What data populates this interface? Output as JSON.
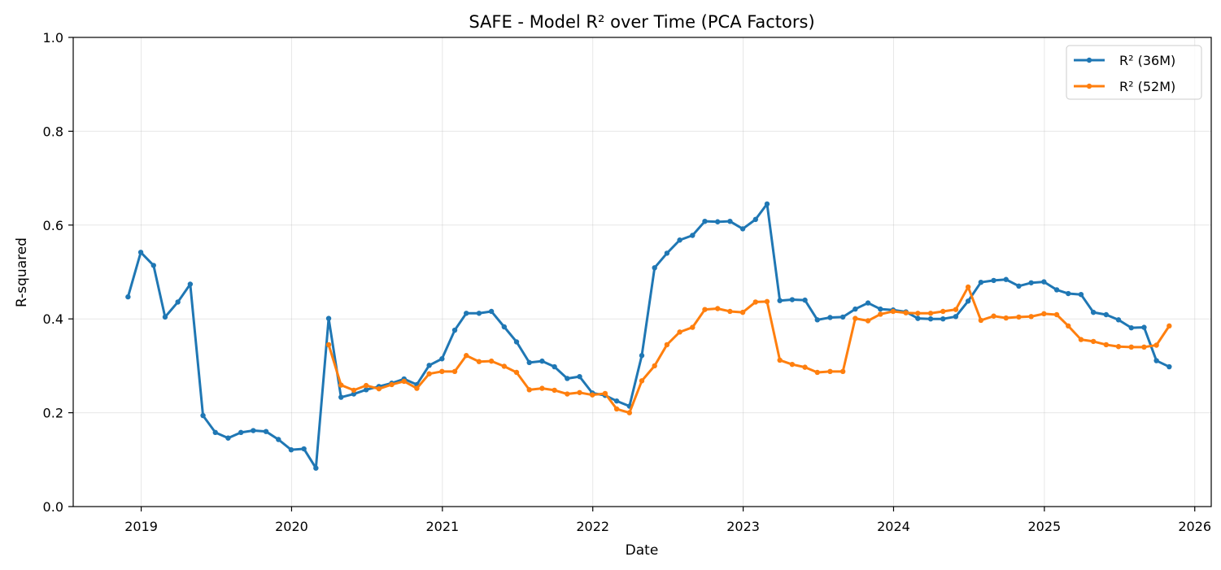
{
  "chart_data": {
    "type": "line",
    "title": "SAFE - Model R² over Time (PCA Factors)",
    "xlabel": "Date",
    "ylabel": "R-squared",
    "xlim": [
      "2018-07-20",
      "2026-02-10"
    ],
    "ylim": [
      0,
      1.0
    ],
    "x_ticks": [
      "2019",
      "2020",
      "2021",
      "2022",
      "2023",
      "2024",
      "2025",
      "2026"
    ],
    "y_ticks": [
      "0.0",
      "0.2",
      "0.4",
      "0.6",
      "0.8",
      "1.0"
    ],
    "grid": true,
    "legend_position": "top-right",
    "series": [
      {
        "name": "R² (36M)",
        "color": "#1f77b4",
        "points": [
          [
            "2018-11-30",
            0.447
          ],
          [
            "2018-12-31",
            0.542
          ],
          [
            "2019-01-31",
            0.514
          ],
          [
            "2019-02-28",
            0.404
          ],
          [
            "2019-03-31",
            0.436
          ],
          [
            "2019-04-30",
            0.474
          ],
          [
            "2019-05-31",
            0.194
          ],
          [
            "2019-06-30",
            0.158
          ],
          [
            "2019-07-31",
            0.146
          ],
          [
            "2019-08-31",
            0.158
          ],
          [
            "2019-09-30",
            0.162
          ],
          [
            "2019-10-31",
            0.16
          ],
          [
            "2019-11-30",
            0.143
          ],
          [
            "2019-12-31",
            0.121
          ],
          [
            "2020-01-31",
            0.123
          ],
          [
            "2020-02-29",
            0.082
          ],
          [
            "2020-03-31",
            0.401
          ],
          [
            "2020-04-30",
            0.233
          ],
          [
            "2020-05-31",
            0.24
          ],
          [
            "2020-06-30",
            0.249
          ],
          [
            "2020-07-31",
            0.256
          ],
          [
            "2020-08-31",
            0.263
          ],
          [
            "2020-09-30",
            0.272
          ],
          [
            "2020-10-31",
            0.26
          ],
          [
            "2020-11-30",
            0.301
          ],
          [
            "2020-12-31",
            0.315
          ],
          [
            "2021-01-31",
            0.376
          ],
          [
            "2021-02-28",
            0.412
          ],
          [
            "2021-03-31",
            0.412
          ],
          [
            "2021-04-30",
            0.416
          ],
          [
            "2021-05-31",
            0.383
          ],
          [
            "2021-06-30",
            0.351
          ],
          [
            "2021-07-31",
            0.307
          ],
          [
            "2021-08-31",
            0.31
          ],
          [
            "2021-09-30",
            0.298
          ],
          [
            "2021-10-31",
            0.273
          ],
          [
            "2021-11-30",
            0.277
          ],
          [
            "2021-12-31",
            0.242
          ],
          [
            "2022-01-31",
            0.237
          ],
          [
            "2022-02-28",
            0.225
          ],
          [
            "2022-03-31",
            0.214
          ],
          [
            "2022-04-30",
            0.322
          ],
          [
            "2022-05-31",
            0.509
          ],
          [
            "2022-06-30",
            0.54
          ],
          [
            "2022-07-31",
            0.568
          ],
          [
            "2022-08-31",
            0.578
          ],
          [
            "2022-09-30",
            0.608
          ],
          [
            "2022-10-31",
            0.607
          ],
          [
            "2022-11-30",
            0.608
          ],
          [
            "2022-12-31",
            0.592
          ],
          [
            "2023-01-31",
            0.612
          ],
          [
            "2023-02-28",
            0.645
          ],
          [
            "2023-03-31",
            0.439
          ],
          [
            "2023-04-30",
            0.441
          ],
          [
            "2023-05-31",
            0.44
          ],
          [
            "2023-06-30",
            0.398
          ],
          [
            "2023-07-31",
            0.403
          ],
          [
            "2023-08-31",
            0.404
          ],
          [
            "2023-09-30",
            0.421
          ],
          [
            "2023-10-31",
            0.434
          ],
          [
            "2023-11-30",
            0.421
          ],
          [
            "2023-12-31",
            0.419
          ],
          [
            "2024-01-31",
            0.415
          ],
          [
            "2024-02-29",
            0.401
          ],
          [
            "2024-03-31",
            0.4
          ],
          [
            "2024-04-30",
            0.4
          ],
          [
            "2024-05-31",
            0.405
          ],
          [
            "2024-06-30",
            0.438
          ],
          [
            "2024-07-31",
            0.478
          ],
          [
            "2024-08-31",
            0.482
          ],
          [
            "2024-09-30",
            0.484
          ],
          [
            "2024-10-31",
            0.47
          ],
          [
            "2024-11-30",
            0.477
          ],
          [
            "2024-12-31",
            0.479
          ],
          [
            "2025-01-31",
            0.462
          ],
          [
            "2025-02-28",
            0.454
          ],
          [
            "2025-03-31",
            0.452
          ],
          [
            "2025-04-30",
            0.414
          ],
          [
            "2025-05-31",
            0.409
          ],
          [
            "2025-06-30",
            0.398
          ],
          [
            "2025-07-31",
            0.381
          ],
          [
            "2025-08-31",
            0.382
          ],
          [
            "2025-09-30",
            0.311
          ],
          [
            "2025-10-31",
            0.298
          ]
        ]
      },
      {
        "name": "R² (52M)",
        "color": "#ff7f0e",
        "points": [
          [
            "2020-03-31",
            0.345
          ],
          [
            "2020-04-30",
            0.259
          ],
          [
            "2020-05-31",
            0.248
          ],
          [
            "2020-06-30",
            0.258
          ],
          [
            "2020-07-31",
            0.251
          ],
          [
            "2020-08-31",
            0.26
          ],
          [
            "2020-09-30",
            0.267
          ],
          [
            "2020-10-31",
            0.252
          ],
          [
            "2020-11-30",
            0.283
          ],
          [
            "2020-12-31",
            0.288
          ],
          [
            "2021-01-31",
            0.288
          ],
          [
            "2021-02-28",
            0.322
          ],
          [
            "2021-03-31",
            0.309
          ],
          [
            "2021-04-30",
            0.31
          ],
          [
            "2021-05-31",
            0.299
          ],
          [
            "2021-06-30",
            0.286
          ],
          [
            "2021-07-31",
            0.249
          ],
          [
            "2021-08-31",
            0.252
          ],
          [
            "2021-09-30",
            0.248
          ],
          [
            "2021-10-31",
            0.24
          ],
          [
            "2021-11-30",
            0.243
          ],
          [
            "2021-12-31",
            0.238
          ],
          [
            "2022-01-31",
            0.241
          ],
          [
            "2022-02-28",
            0.208
          ],
          [
            "2022-03-31",
            0.2
          ],
          [
            "2022-04-30",
            0.268
          ],
          [
            "2022-05-31",
            0.3
          ],
          [
            "2022-06-30",
            0.345
          ],
          [
            "2022-07-31",
            0.372
          ],
          [
            "2022-08-31",
            0.382
          ],
          [
            "2022-09-30",
            0.42
          ],
          [
            "2022-10-31",
            0.422
          ],
          [
            "2022-11-30",
            0.416
          ],
          [
            "2022-12-31",
            0.414
          ],
          [
            "2023-01-31",
            0.436
          ],
          [
            "2023-02-28",
            0.437
          ],
          [
            "2023-03-31",
            0.312
          ],
          [
            "2023-04-30",
            0.303
          ],
          [
            "2023-05-31",
            0.297
          ],
          [
            "2023-06-30",
            0.286
          ],
          [
            "2023-07-31",
            0.288
          ],
          [
            "2023-08-31",
            0.288
          ],
          [
            "2023-09-30",
            0.401
          ],
          [
            "2023-10-31",
            0.396
          ],
          [
            "2023-11-30",
            0.41
          ],
          [
            "2023-12-31",
            0.416
          ],
          [
            "2024-01-31",
            0.413
          ],
          [
            "2024-02-29",
            0.412
          ],
          [
            "2024-03-31",
            0.412
          ],
          [
            "2024-04-30",
            0.416
          ],
          [
            "2024-05-31",
            0.42
          ],
          [
            "2024-06-30",
            0.468
          ],
          [
            "2024-07-31",
            0.397
          ],
          [
            "2024-08-31",
            0.406
          ],
          [
            "2024-09-30",
            0.402
          ],
          [
            "2024-10-31",
            0.404
          ],
          [
            "2024-11-30",
            0.405
          ],
          [
            "2024-12-31",
            0.411
          ],
          [
            "2025-01-31",
            0.409
          ],
          [
            "2025-02-28",
            0.385
          ],
          [
            "2025-03-31",
            0.356
          ],
          [
            "2025-04-30",
            0.352
          ],
          [
            "2025-05-31",
            0.345
          ],
          [
            "2025-06-30",
            0.341
          ],
          [
            "2025-07-31",
            0.34
          ],
          [
            "2025-08-31",
            0.34
          ],
          [
            "2025-09-30",
            0.344
          ],
          [
            "2025-10-31",
            0.385
          ]
        ]
      }
    ]
  }
}
